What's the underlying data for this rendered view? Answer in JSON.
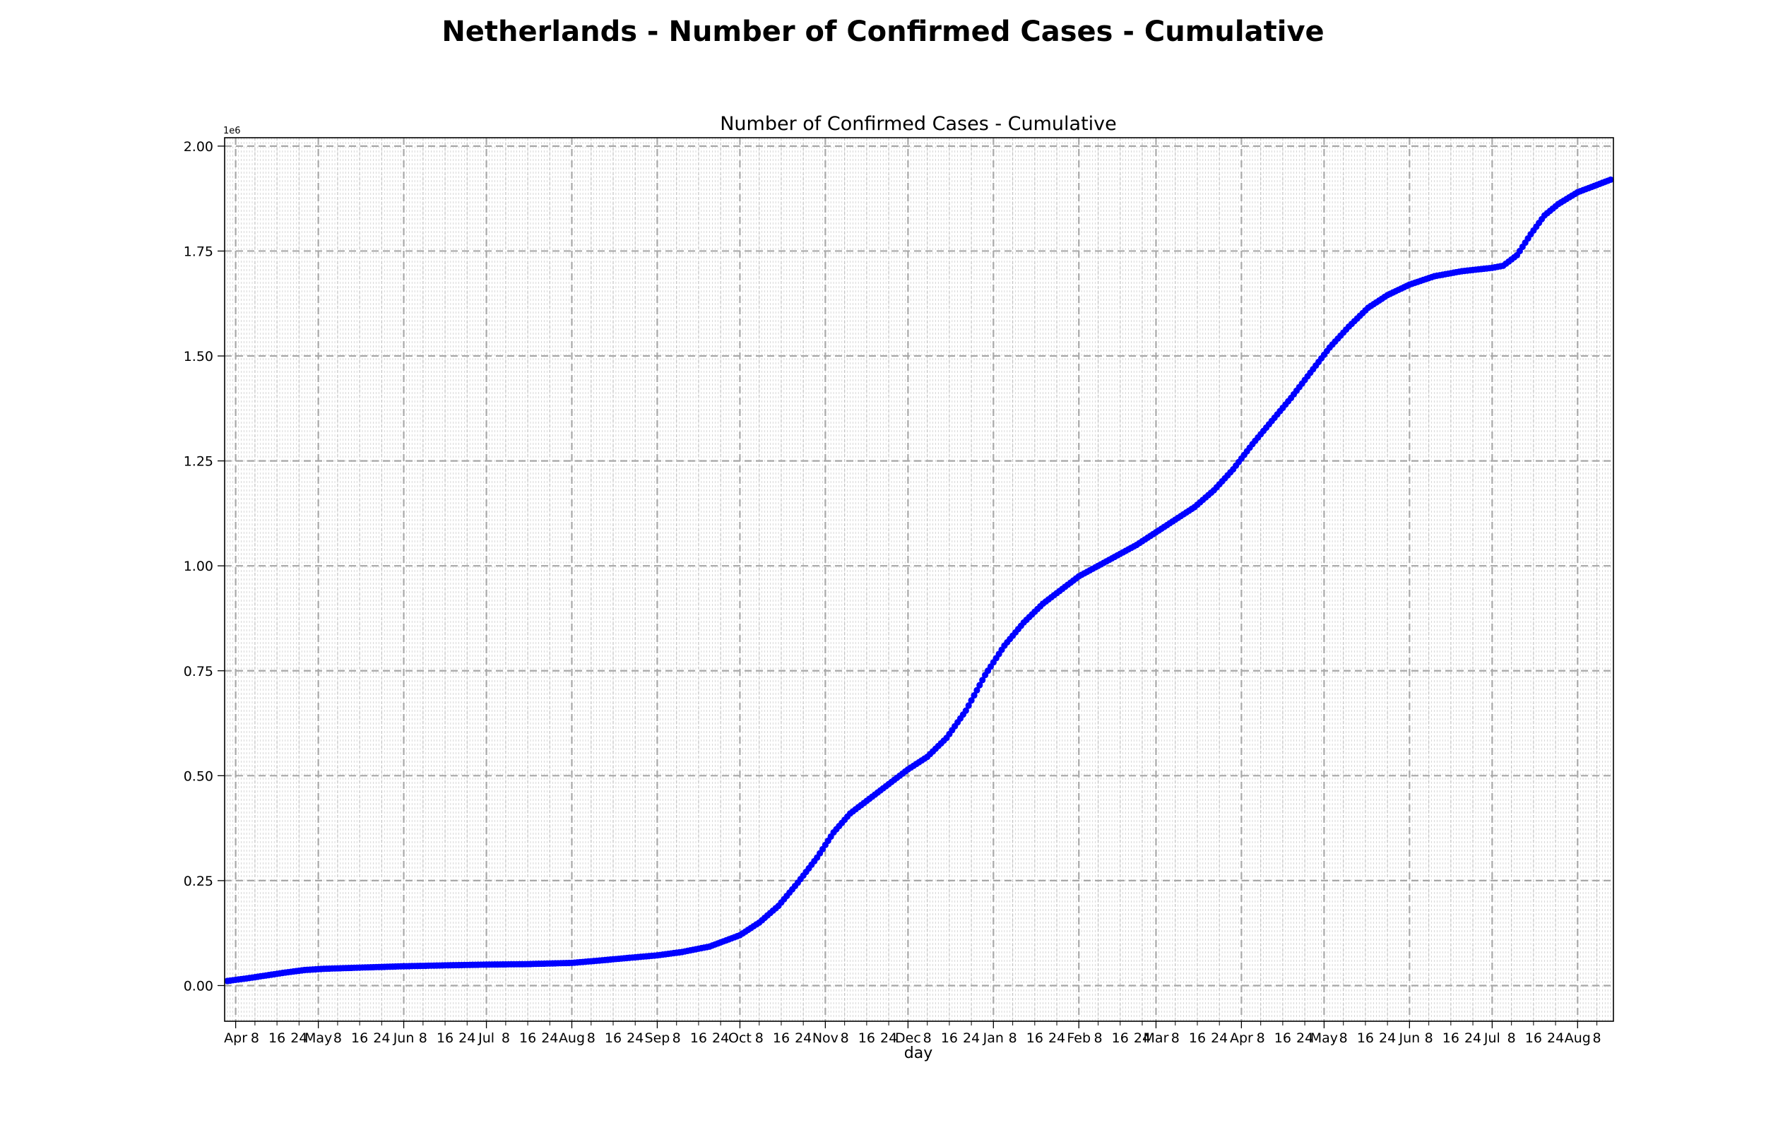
{
  "figure_title": "Netherlands - Number of Confirmed Cases - Cumulative",
  "chart_data": {
    "type": "line",
    "title": "Number of Confirmed Cases - Cumulative",
    "xlabel": "day",
    "ylabel": "",
    "y_offset_label": "1e6",
    "ylim": [
      -0.085,
      2.02
    ],
    "y_ticks": [
      "0.00",
      "0.25",
      "0.50",
      "0.75",
      "1.00",
      "1.25",
      "1.50",
      "1.75",
      "2.00"
    ],
    "y_tick_values": [
      0,
      0.25,
      0.5,
      0.75,
      1.0,
      1.25,
      1.5,
      1.75,
      2.0
    ],
    "xlim": [
      "2020-03-28",
      "2021-08-14"
    ],
    "x_start": "2020-03-29",
    "x_end": "2021-08-13",
    "x_major_ticks": [
      {
        "date": "2020-04-01",
        "label": "Apr"
      },
      {
        "date": "2020-05-01",
        "label": "May"
      },
      {
        "date": "2020-06-01",
        "label": "Jun"
      },
      {
        "date": "2020-07-01",
        "label": "Jul"
      },
      {
        "date": "2020-08-01",
        "label": "Aug"
      },
      {
        "date": "2020-09-01",
        "label": "Sep"
      },
      {
        "date": "2020-10-01",
        "label": "Oct"
      },
      {
        "date": "2020-11-01",
        "label": "Nov"
      },
      {
        "date": "2020-12-01",
        "label": "Dec"
      },
      {
        "date": "2021-01-01",
        "label": "Jan"
      },
      {
        "date": "2021-02-01",
        "label": "Feb"
      },
      {
        "date": "2021-03-01",
        "label": "Mar"
      },
      {
        "date": "2021-04-01",
        "label": "Apr"
      },
      {
        "date": "2021-05-01",
        "label": "May"
      },
      {
        "date": "2021-06-01",
        "label": "Jun"
      },
      {
        "date": "2021-07-01",
        "label": "Jul"
      },
      {
        "date": "2021-08-01",
        "label": "Aug"
      }
    ],
    "x_minor_tick_days": [
      8,
      16,
      24
    ],
    "series": [
      {
        "color": "#0000ff",
        "points": [
          [
            "2020-03-29",
            0.011
          ],
          [
            "2020-04-05",
            0.017
          ],
          [
            "2020-04-12",
            0.024
          ],
          [
            "2020-04-19",
            0.031
          ],
          [
            "2020-04-26",
            0.037
          ],
          [
            "2020-05-03",
            0.04
          ],
          [
            "2020-05-17",
            0.043
          ],
          [
            "2020-06-01",
            0.046
          ],
          [
            "2020-06-15",
            0.048
          ],
          [
            "2020-07-01",
            0.05
          ],
          [
            "2020-07-15",
            0.051
          ],
          [
            "2020-08-01",
            0.054
          ],
          [
            "2020-08-10",
            0.059
          ],
          [
            "2020-08-20",
            0.065
          ],
          [
            "2020-09-01",
            0.072
          ],
          [
            "2020-09-10",
            0.08
          ],
          [
            "2020-09-20",
            0.093
          ],
          [
            "2020-10-01",
            0.12
          ],
          [
            "2020-10-08",
            0.15
          ],
          [
            "2020-10-15",
            0.19
          ],
          [
            "2020-10-22",
            0.245
          ],
          [
            "2020-10-29",
            0.305
          ],
          [
            "2020-11-04",
            0.365
          ],
          [
            "2020-11-10",
            0.41
          ],
          [
            "2020-11-17",
            0.445
          ],
          [
            "2020-11-24",
            0.48
          ],
          [
            "2020-12-01",
            0.515
          ],
          [
            "2020-12-08",
            0.545
          ],
          [
            "2020-12-15",
            0.59
          ],
          [
            "2020-12-22",
            0.655
          ],
          [
            "2020-12-29",
            0.74
          ],
          [
            "2021-01-05",
            0.81
          ],
          [
            "2021-01-12",
            0.865
          ],
          [
            "2021-01-19",
            0.91
          ],
          [
            "2021-01-26",
            0.945
          ],
          [
            "2021-02-01",
            0.975
          ],
          [
            "2021-02-08",
            1.0
          ],
          [
            "2021-02-15",
            1.025
          ],
          [
            "2021-02-22",
            1.05
          ],
          [
            "2021-03-01",
            1.08
          ],
          [
            "2021-03-08",
            1.11
          ],
          [
            "2021-03-15",
            1.14
          ],
          [
            "2021-03-22",
            1.18
          ],
          [
            "2021-03-29",
            1.23
          ],
          [
            "2021-04-05",
            1.29
          ],
          [
            "2021-04-12",
            1.345
          ],
          [
            "2021-04-19",
            1.4
          ],
          [
            "2021-04-26",
            1.46
          ],
          [
            "2021-05-03",
            1.52
          ],
          [
            "2021-05-10",
            1.57
          ],
          [
            "2021-05-17",
            1.615
          ],
          [
            "2021-05-24",
            1.645
          ],
          [
            "2021-06-01",
            1.67
          ],
          [
            "2021-06-10",
            1.69
          ],
          [
            "2021-06-20",
            1.702
          ],
          [
            "2021-07-01",
            1.71
          ],
          [
            "2021-07-05",
            1.715
          ],
          [
            "2021-07-10",
            1.74
          ],
          [
            "2021-07-15",
            1.79
          ],
          [
            "2021-07-20",
            1.835
          ],
          [
            "2021-07-25",
            1.862
          ],
          [
            "2021-08-01",
            1.89
          ],
          [
            "2021-08-07",
            1.905
          ],
          [
            "2021-08-13",
            1.92
          ]
        ]
      }
    ]
  }
}
